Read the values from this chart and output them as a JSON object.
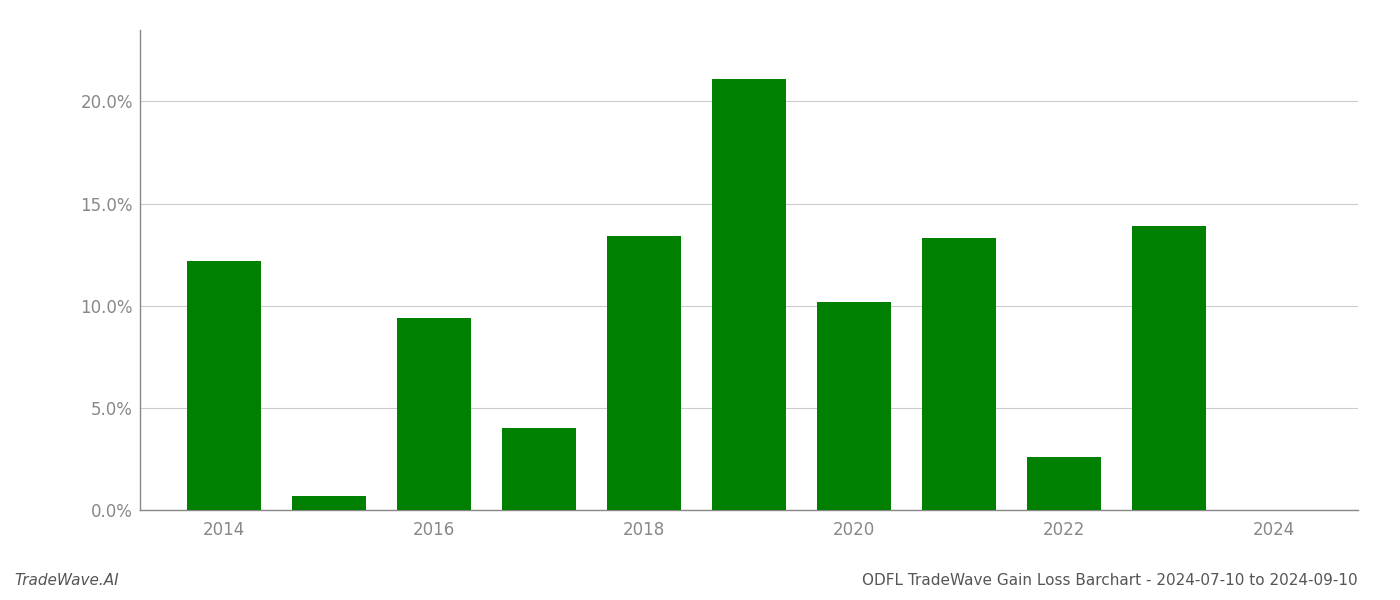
{
  "years": [
    2014,
    2015,
    2016,
    2017,
    2018,
    2019,
    2020,
    2021,
    2022,
    2023
  ],
  "values": [
    0.122,
    0.007,
    0.094,
    0.04,
    0.134,
    0.211,
    0.102,
    0.133,
    0.026,
    0.139
  ],
  "bar_color": "#008000",
  "title": "ODFL TradeWave Gain Loss Barchart - 2024-07-10 to 2024-09-10",
  "watermark": "TradeWave.AI",
  "ylim": [
    0,
    0.235
  ],
  "yticks": [
    0.0,
    0.05,
    0.1,
    0.15,
    0.2
  ],
  "ytick_labels": [
    "0.0%",
    "5.0%",
    "10.0%",
    "15.0%",
    "20.0%"
  ],
  "xtick_labels": [
    "2014",
    "2016",
    "2018",
    "2020",
    "2022",
    "2024"
  ],
  "xtick_positions": [
    2014,
    2016,
    2018,
    2020,
    2022,
    2024
  ],
  "background_color": "#ffffff",
  "grid_color": "#cccccc",
  "axis_label_color": "#888888",
  "title_color": "#555555",
  "watermark_color": "#555555",
  "title_fontsize": 11,
  "watermark_fontsize": 11,
  "tick_fontsize": 12,
  "bar_width": 0.7
}
